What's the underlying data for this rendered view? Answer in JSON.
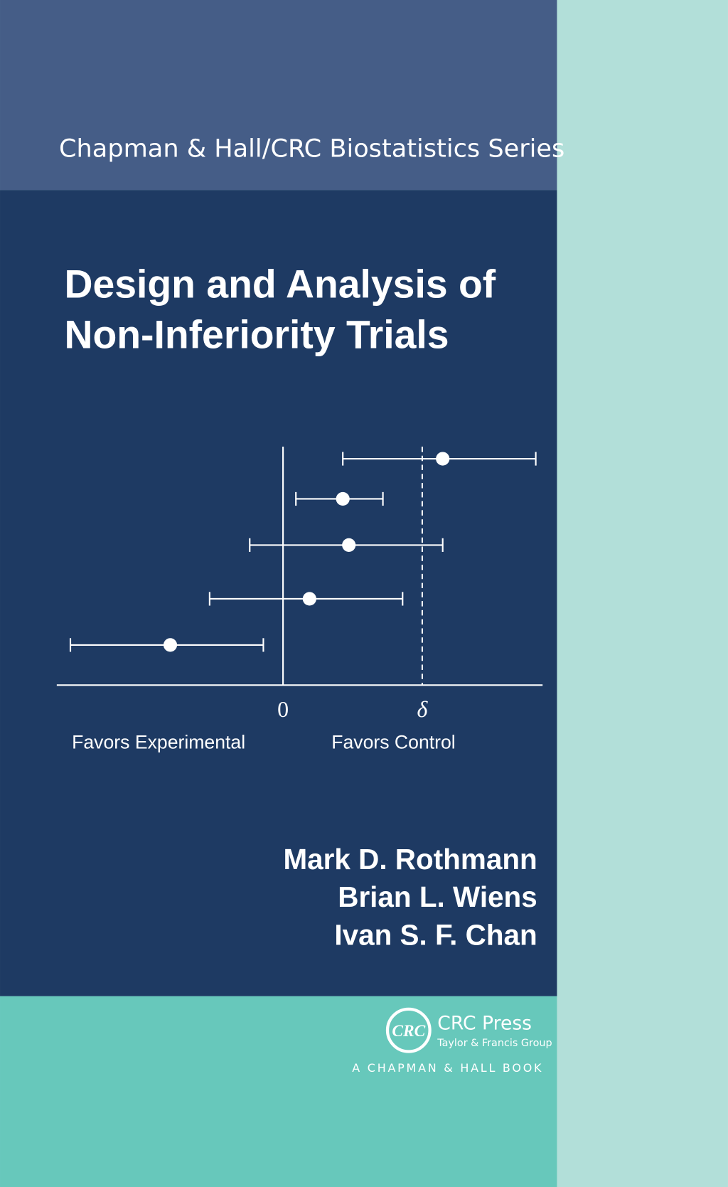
{
  "header": {
    "series": "Chapman & Hall/CRC Biostatistics Series"
  },
  "title": {
    "lines": [
      "Design and Analysis of",
      "Non-Inferiority Trials"
    ]
  },
  "figure": {
    "axis_labels": [
      "0",
      "δ"
    ],
    "captions": [
      "Favors Experimental",
      "Favors Control"
    ]
  },
  "authors": [
    "Mark D. Rothmann",
    "Brian L. Wiens",
    "Ivan S. F. Chan"
  ],
  "publisher": {
    "logo": "CRC",
    "name": "CRC Press",
    "group": "Taylor & Francis Group",
    "imprint": "A CHAPMAN & HALL BOOK"
  }
}
